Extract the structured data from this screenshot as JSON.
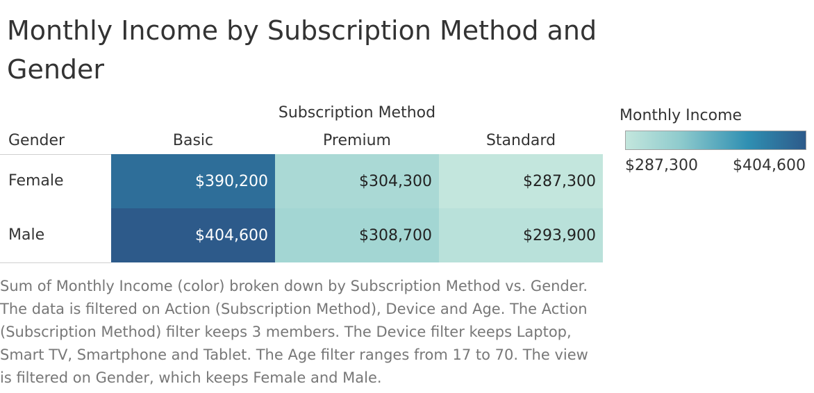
{
  "chart_data": {
    "type": "heatmap",
    "title": "Monthly Income by Subscription Method and Gender",
    "column_group_label": "Subscription Method",
    "row_header_label": "Gender",
    "columns": [
      "Basic",
      "Premium",
      "Standard"
    ],
    "rows": [
      "Female",
      "Male"
    ],
    "values": [
      [
        390200,
        304300,
        287300
      ],
      [
        404600,
        308700,
        293900
      ]
    ],
    "value_labels": [
      [
        "$390,200",
        "$304,300",
        "$287,300"
      ],
      [
        "$404,600",
        "$308,700",
        "$293,900"
      ]
    ],
    "legend": {
      "title": "Monthly Income",
      "min": 287300,
      "max": 404600,
      "min_label": "$287,300",
      "max_label": "$404,600",
      "placement": "top-right"
    },
    "color_scale": [
      "#c3e6dd",
      "#8fcbcd",
      "#2f8fb2",
      "#2d5a8a"
    ]
  },
  "caption": "Sum of Monthly Income (color) broken down by Subscription Method vs. Gender. The data is filtered on Action (Subscription Method), Device and Age. The Action (Subscription Method) filter keeps 3 members. The Device filter keeps Laptop, Smart TV, Smartphone and Tablet. The Age filter ranges from 17 to 70. The view is filtered on Gender, which keeps Female and Male."
}
